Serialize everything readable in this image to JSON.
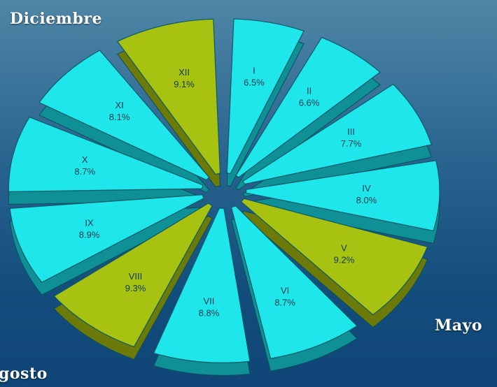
{
  "chart_data": {
    "type": "pie",
    "style": "exploded-3d",
    "categories": [
      "I",
      "II",
      "III",
      "IV",
      "V",
      "VI",
      "VII",
      "VIII",
      "IX",
      "X",
      "XI",
      "XII"
    ],
    "values": [
      6.5,
      6.6,
      7.7,
      8.0,
      9.2,
      8.7,
      8.8,
      9.3,
      8.9,
      8.7,
      8.1,
      9.1
    ],
    "labels": [
      "6.5%",
      "6.6%",
      "7.7%",
      "8.0%",
      "9.2%",
      "8.7%",
      "8.8%",
      "9.3%",
      "8.9%",
      "8.7%",
      "8.1%",
      "9.1%"
    ],
    "highlighted": [
      "V",
      "VIII",
      "XII"
    ],
    "colors": {
      "slice": "#1ee6ea",
      "slice_side": "#0f8f96",
      "highlight": "#a8c212",
      "highlight_side": "#6b7a08",
      "label": "#0d3a4a"
    }
  },
  "callouts": {
    "december": "Diciembre",
    "may": "Mayo",
    "august": "gosto"
  }
}
